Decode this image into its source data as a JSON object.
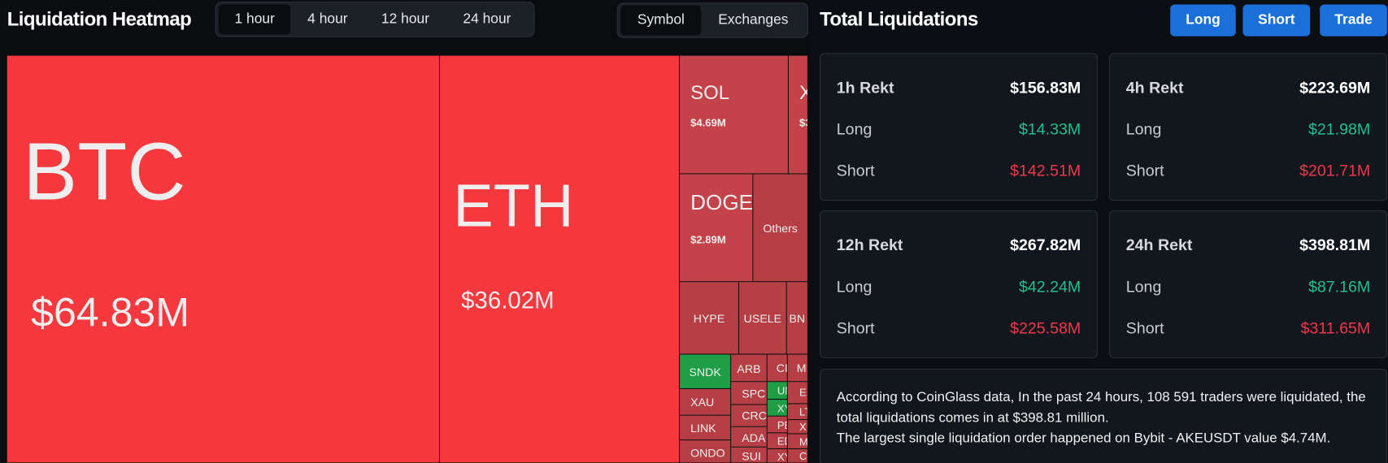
{
  "heatmap": {
    "title": "Liquidation Heatmap",
    "timeframes": [
      "1 hour",
      "4 hour",
      "12 hour",
      "24 hour"
    ],
    "views": [
      "Symbol",
      "Exchanges"
    ],
    "tiles": [
      {
        "label": "BTC",
        "value": "$64.83M"
      },
      {
        "label": "ETH",
        "value": "$36.02M"
      },
      {
        "label": "SOL",
        "value": "$4.69M"
      },
      {
        "label": "X",
        "value": "$3"
      },
      {
        "label": "DOGE",
        "value": "$2.89M"
      },
      {
        "label": "Others"
      },
      {
        "label": "HYPE"
      },
      {
        "label": "USELE"
      },
      {
        "label": "BN"
      },
      {
        "label": "SNDK"
      },
      {
        "label": "XAU"
      },
      {
        "label": "LINK"
      },
      {
        "label": "ONDO"
      },
      {
        "label": "ARB"
      },
      {
        "label": "SPC"
      },
      {
        "label": "CRC"
      },
      {
        "label": "ADA"
      },
      {
        "label": "SUI"
      },
      {
        "label": "CI"
      },
      {
        "label": "M"
      },
      {
        "label": "UN"
      },
      {
        "label": "XY"
      },
      {
        "label": "PE"
      },
      {
        "label": "ED"
      },
      {
        "label": "XY"
      },
      {
        "label": "E"
      },
      {
        "label": "LT"
      },
      {
        "label": "X"
      },
      {
        "label": "M"
      },
      {
        "label": "C"
      }
    ]
  },
  "liquidations": {
    "title": "Total Liquidations",
    "buttons": [
      "Long",
      "Short",
      "Trade"
    ],
    "cards": [
      {
        "label": "1h Rekt",
        "total": "$156.83M",
        "rows": [
          {
            "label": "Long",
            "value": "$14.33M"
          },
          {
            "label": "Short",
            "value": "$142.51M"
          }
        ]
      },
      {
        "label": "4h Rekt",
        "total": "$223.69M",
        "rows": [
          {
            "label": "Long",
            "value": "$21.98M"
          },
          {
            "label": "Short",
            "value": "$201.71M"
          }
        ]
      },
      {
        "label": "12h Rekt",
        "total": "$267.82M",
        "rows": [
          {
            "label": "Long",
            "value": "$42.24M"
          },
          {
            "label": "Short",
            "value": "$225.58M"
          }
        ]
      },
      {
        "label": "24h Rekt",
        "total": "$398.81M",
        "rows": [
          {
            "label": "Long",
            "value": "$87.16M"
          },
          {
            "label": "Short",
            "value": "$311.65M"
          }
        ]
      }
    ],
    "description": [
      "According to CoinGlass data, In the past 24 hours, 108 591 traders were liquidated, the total liquidations comes in at $398.81 million.",
      "The largest single liquidation order happened on Bybit - AKEUSDT value $4.74M."
    ]
  }
}
